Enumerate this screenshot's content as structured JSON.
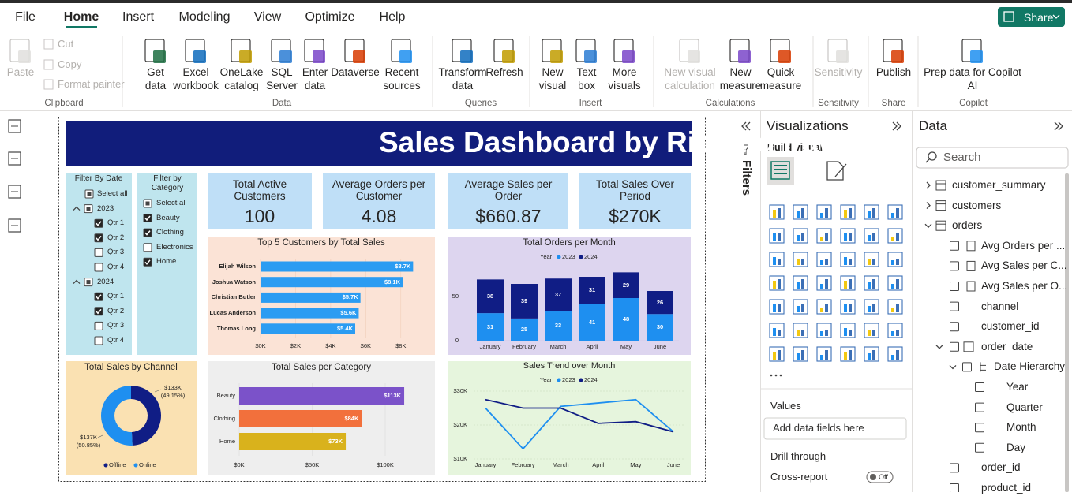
{
  "menu": {
    "tabs": [
      "File",
      "Home",
      "Insert",
      "Modeling",
      "View",
      "Optimize",
      "Help"
    ],
    "active": 1,
    "share": "Share"
  },
  "ribbon": {
    "groups": [
      {
        "label": "Clipboard",
        "items": [
          {
            "lines": [
              "Paste"
            ],
            "disabled": true
          },
          {
            "lines": [
              "Cut"
            ],
            "disabled": true
          },
          {
            "lines": [
              "Copy"
            ],
            "disabled": true
          },
          {
            "lines": [
              "Format painter"
            ],
            "disabled": true
          }
        ]
      },
      {
        "label": "Data",
        "items": [
          {
            "lines": [
              "Get",
              "data"
            ]
          },
          {
            "lines": [
              "Excel",
              "workbook"
            ]
          },
          {
            "lines": [
              "OneLake",
              "catalog"
            ]
          },
          {
            "lines": [
              "SQL",
              "Server"
            ]
          },
          {
            "lines": [
              "Enter",
              "data"
            ]
          },
          {
            "lines": [
              "Dataverse"
            ]
          },
          {
            "lines": [
              "Recent",
              "sources"
            ]
          }
        ]
      },
      {
        "label": "Queries",
        "items": [
          {
            "lines": [
              "Transform",
              "data"
            ]
          },
          {
            "lines": [
              "Refresh"
            ]
          }
        ]
      },
      {
        "label": "Insert",
        "items": [
          {
            "lines": [
              "New",
              "visual"
            ]
          },
          {
            "lines": [
              "Text",
              "box"
            ]
          },
          {
            "lines": [
              "More",
              "visuals"
            ]
          }
        ]
      },
      {
        "label": "Calculations",
        "items": [
          {
            "lines": [
              "New visual",
              "calculation"
            ],
            "disabled": true
          },
          {
            "lines": [
              "New",
              "measure"
            ]
          },
          {
            "lines": [
              "Quick",
              "measure"
            ]
          }
        ]
      },
      {
        "label": "Sensitivity",
        "items": [
          {
            "lines": [
              "Sensitivity"
            ],
            "disabled": true
          }
        ]
      },
      {
        "label": "Share",
        "items": [
          {
            "lines": [
              "Publish"
            ]
          }
        ]
      },
      {
        "label": "Copilot",
        "items": [
          {
            "lines": [
              "Prep data for Copilot",
              "AI"
            ]
          }
        ]
      }
    ]
  },
  "filters": {
    "title": "Filters"
  },
  "visualizations": {
    "title": "Visualizations",
    "build_visual": "Build visual",
    "values_label": "Values",
    "values_placeholder": "Add data fields here",
    "drill_through": "Drill through",
    "cross_report": "Cross-report",
    "cross_report_toggle": "Off"
  },
  "data_pane": {
    "title": "Data",
    "search": "Search",
    "tree": [
      {
        "label": "customer_summary",
        "kind": "table",
        "level": 0,
        "expanded": false
      },
      {
        "label": "customers",
        "kind": "table",
        "level": 0,
        "expanded": false
      },
      {
        "label": "orders",
        "kind": "table",
        "level": 0,
        "expanded": true
      },
      {
        "label": "Avg Orders per ...",
        "kind": "measure",
        "level": 1
      },
      {
        "label": "Avg Sales per C...",
        "kind": "measure",
        "level": 1
      },
      {
        "label": "Avg Sales per O...",
        "kind": "measure",
        "level": 1
      },
      {
        "label": "channel",
        "kind": "field",
        "level": 1
      },
      {
        "label": "customer_id",
        "kind": "field",
        "level": 1
      },
      {
        "label": "order_date",
        "kind": "date",
        "level": 1,
        "expanded": true
      },
      {
        "label": "Date Hierarchy",
        "kind": "hierarchy",
        "level": 2,
        "expanded": true
      },
      {
        "label": "Year",
        "kind": "field",
        "level": 3
      },
      {
        "label": "Quarter",
        "kind": "field",
        "level": 3
      },
      {
        "label": "Month",
        "kind": "field",
        "level": 3
      },
      {
        "label": "Day",
        "kind": "field",
        "level": 3
      },
      {
        "label": "order_id",
        "kind": "field",
        "level": 1
      },
      {
        "label": "product_id",
        "kind": "field",
        "level": 1
      }
    ]
  },
  "dashboard": {
    "title": "Sales Dashboard by Richard Irawan",
    "date_filter": {
      "title": "Filter By Date",
      "select_all": "Select all",
      "select_all_state": "partial",
      "years": [
        {
          "label": "2023",
          "state": "partial",
          "quarters": [
            {
              "label": "Qtr 1",
              "state": "checked"
            },
            {
              "label": "Qtr 2",
              "state": "checked"
            },
            {
              "label": "Qtr 3",
              "state": "unchecked"
            },
            {
              "label": "Qtr 4",
              "state": "unchecked"
            }
          ]
        },
        {
          "label": "2024",
          "state": "partial",
          "quarters": [
            {
              "label": "Qtr 1",
              "state": "checked"
            },
            {
              "label": "Qtr 2",
              "state": "checked"
            },
            {
              "label": "Qtr 3",
              "state": "unchecked"
            },
            {
              "label": "Qtr 4",
              "state": "unchecked"
            }
          ]
        }
      ]
    },
    "category_filter": {
      "title": "Filter by Category",
      "select_all": "Select all",
      "select_all_state": "partial",
      "items": [
        {
          "label": "Beauty",
          "state": "checked"
        },
        {
          "label": "Clothing",
          "state": "checked"
        },
        {
          "label": "Electronics",
          "state": "unchecked"
        },
        {
          "label": "Home",
          "state": "checked"
        }
      ]
    },
    "cards": [
      {
        "title": "Total Active Customers",
        "value": "100"
      },
      {
        "title": "Average Orders per Customer",
        "value": "4.08"
      },
      {
        "title": "Average Sales per Order",
        "value": "$660.87"
      },
      {
        "title": "Total Sales Over Period",
        "value": "$270K"
      }
    ],
    "top_customers": {
      "type": "bar",
      "title": "Top 5 Customers by Total Sales",
      "categories": [
        "Elijah Wilson",
        "Joshua Watson",
        "Christian Butler",
        "Lucas Anderson",
        "Thomas Long"
      ],
      "values": [
        8700,
        8100,
        5700,
        5600,
        5400
      ],
      "value_labels": [
        "$8.7K",
        "$8.1K",
        "$5.7K",
        "$5.6K",
        "$5.4K"
      ],
      "color": "#2b9cf2",
      "xlim": [
        0,
        9000
      ],
      "xticks": [
        {
          "value": 0,
          "label": "$0K"
        },
        {
          "value": 2000,
          "label": "$2K"
        },
        {
          "value": 4000,
          "label": "$4K"
        },
        {
          "value": 6000,
          "label": "$6K"
        },
        {
          "value": 8000,
          "label": "$8K"
        }
      ]
    },
    "orders_per_month": {
      "type": "stacked-bar",
      "title": "Total Orders per Month",
      "legend_title": "Year",
      "categories": [
        "January",
        "February",
        "March",
        "April",
        "May",
        "June"
      ],
      "series": [
        {
          "name": "2023",
          "color": "#1e8ff0",
          "values": [
            31,
            25,
            33,
            41,
            48,
            30
          ]
        },
        {
          "name": "2024",
          "color": "#101d85",
          "values": [
            38,
            39,
            37,
            31,
            29,
            26
          ]
        }
      ],
      "ylim": [
        0,
        80
      ],
      "yticks": [
        0,
        50
      ]
    },
    "sales_by_channel": {
      "type": "donut",
      "title": "Total Sales by Channel",
      "categories": [
        "Offline",
        "Online"
      ],
      "values": [
        133000,
        137000
      ],
      "value_labels": [
        "$133K",
        "$137K"
      ],
      "percents": [
        49.15,
        50.85
      ],
      "percent_labels": [
        "(49.15%)",
        "(50.85%)"
      ],
      "colors": [
        "#101d85",
        "#1e8ff0"
      ]
    },
    "sales_per_category": {
      "type": "bar",
      "title": "Total Sales per Category",
      "categories": [
        "Beauty",
        "Clothing",
        "Home"
      ],
      "values": [
        113000,
        84000,
        73000
      ],
      "value_labels": [
        "$113K",
        "$84K",
        "$73K"
      ],
      "colors": [
        "#7b52c9",
        "#f2703c",
        "#d9b21c"
      ],
      "xlim": [
        0,
        120000
      ],
      "xticks": [
        {
          "value": 0,
          "label": "$0K"
        },
        {
          "value": 50000,
          "label": "$50K"
        },
        {
          "value": 100000,
          "label": "$100K"
        }
      ]
    },
    "sales_trend": {
      "type": "line",
      "title": "Sales Trend over Month",
      "legend_title": "Year",
      "categories": [
        "January",
        "February",
        "March",
        "April",
        "May",
        "June"
      ],
      "series": [
        {
          "name": "2023",
          "color": "#1e8ff0",
          "values": [
            25000,
            13000,
            25500,
            26500,
            27500,
            18000
          ]
        },
        {
          "name": "2024",
          "color": "#101d85",
          "values": [
            27500,
            25000,
            25000,
            20500,
            21000,
            18000
          ]
        }
      ],
      "ylim": [
        8000,
        32000
      ],
      "yticks": [
        {
          "value": 10000,
          "label": "$10K"
        },
        {
          "value": 20000,
          "label": "$20K"
        },
        {
          "value": 30000,
          "label": "$30K"
        }
      ]
    }
  }
}
